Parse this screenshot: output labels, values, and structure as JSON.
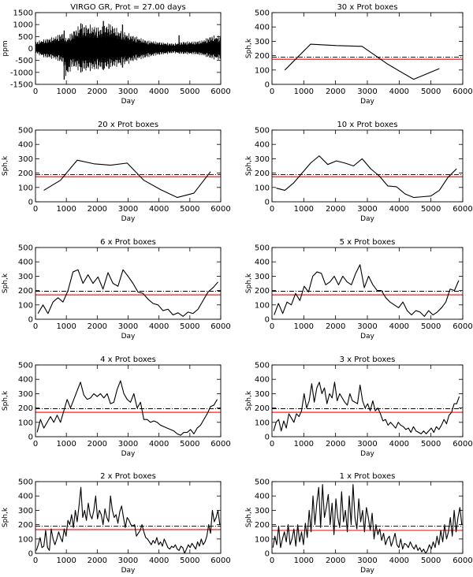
{
  "figure": {
    "colors": {
      "line": "#000000",
      "mean_line": "#ff0000",
      "dashdot_line": "#000000",
      "background": "#ffffff"
    }
  },
  "chart_data": [
    {
      "type": "line",
      "title": "VIRGO GR, Prot = 27.00 days",
      "xlabel": "Day",
      "ylabel": "ppm",
      "xlim": [
        0,
        6000
      ],
      "ylim": [
        -1500,
        1500
      ],
      "xticks": [
        0,
        1000,
        2000,
        3000,
        4000,
        5000,
        6000
      ],
      "yticks": [
        -1500,
        -1000,
        -500,
        0,
        500,
        1000,
        1500
      ],
      "envelope": {
        "note": "dense light curve; values are the visible upper/lower envelope",
        "x": [
          0,
          300,
          600,
          900,
          1000,
          1200,
          1500,
          1800,
          2100,
          2400,
          2700,
          3000,
          3300,
          3600,
          3900,
          4200,
          4500,
          4800,
          5100,
          5400,
          5700,
          6000
        ],
        "upper": [
          300,
          400,
          500,
          700,
          400,
          750,
          1050,
          1000,
          900,
          1100,
          800,
          650,
          500,
          350,
          300,
          250,
          220,
          300,
          300,
          350,
          550,
          550
        ],
        "lower": [
          -200,
          -400,
          -450,
          -650,
          -1300,
          -800,
          -1000,
          -950,
          -900,
          -850,
          -750,
          -650,
          -500,
          -400,
          -300,
          -250,
          -200,
          -250,
          -250,
          -300,
          -450,
          -500
        ]
      },
      "spikes": [
        {
          "x": 930,
          "lo": -1300,
          "hi": 750
        },
        {
          "x": 1470,
          "lo": -1000,
          "hi": 1050
        },
        {
          "x": 2200,
          "lo": -900,
          "hi": 1150
        },
        {
          "x": 2380,
          "lo": -850,
          "hi": 700
        },
        {
          "x": 2820,
          "lo": -800,
          "hi": 1000
        },
        {
          "x": 4650,
          "lo": -200,
          "hi": 550
        }
      ]
    },
    {
      "type": "line",
      "title": "30 x Prot boxes",
      "xlabel": "Day",
      "ylabel": "Sph,k",
      "xlim": [
        0,
        6000
      ],
      "ylim": [
        0,
        500
      ],
      "xticks": [
        0,
        1000,
        2000,
        3000,
        4000,
        5000,
        6000
      ],
      "yticks": [
        0,
        100,
        200,
        300,
        400,
        500
      ],
      "mean_line": 175,
      "dashdot_line": 190,
      "x": [
        405,
        1215,
        2025,
        2835,
        3645,
        4455,
        5265
      ],
      "y": [
        100,
        280,
        270,
        265,
        140,
        35,
        110
      ]
    },
    {
      "type": "line",
      "title": "20 x Prot boxes",
      "xlabel": "Day",
      "ylabel": "Sph,k",
      "xlim": [
        0,
        6000
      ],
      "ylim": [
        0,
        500
      ],
      "xticks": [
        0,
        1000,
        2000,
        3000,
        4000,
        5000,
        6000
      ],
      "yticks": [
        0,
        100,
        200,
        300,
        400,
        500
      ],
      "mean_line": 175,
      "dashdot_line": 190,
      "x": [
        270,
        810,
        1350,
        1890,
        2430,
        2970,
        3510,
        4050,
        4590,
        5130,
        5670
      ],
      "y": [
        80,
        150,
        290,
        265,
        255,
        270,
        150,
        85,
        30,
        60,
        210
      ]
    },
    {
      "type": "line",
      "title": "10 x Prot boxes",
      "xlabel": "Day",
      "ylabel": "Sph,k",
      "xlim": [
        0,
        6000
      ],
      "ylim": [
        0,
        500
      ],
      "xticks": [
        0,
        1000,
        2000,
        3000,
        4000,
        5000,
        6000
      ],
      "yticks": [
        0,
        100,
        200,
        300,
        400,
        500
      ],
      "mean_line": 175,
      "dashdot_line": 190,
      "x": [
        135,
        405,
        675,
        945,
        1215,
        1485,
        1755,
        2025,
        2295,
        2565,
        2835,
        3105,
        3375,
        3645,
        3915,
        4185,
        4455,
        4725,
        4995,
        5265,
        5535,
        5805
      ],
      "y": [
        95,
        80,
        130,
        200,
        270,
        320,
        260,
        285,
        270,
        250,
        300,
        230,
        180,
        110,
        105,
        55,
        30,
        35,
        40,
        80,
        170,
        230
      ]
    },
    {
      "type": "line",
      "title": "6 x Prot boxes",
      "xlabel": "Day",
      "ylabel": "Sph,k",
      "xlim": [
        0,
        6000
      ],
      "ylim": [
        0,
        500
      ],
      "xticks": [
        0,
        1000,
        2000,
        3000,
        4000,
        5000,
        6000
      ],
      "yticks": [
        0,
        100,
        200,
        300,
        400,
        500
      ],
      "mean_line": 170,
      "dashdot_line": 195,
      "x": [
        81,
        243,
        405,
        567,
        729,
        891,
        1053,
        1215,
        1377,
        1539,
        1701,
        1863,
        2025,
        2187,
        2349,
        2511,
        2673,
        2835,
        2997,
        3159,
        3321,
        3483,
        3645,
        3807,
        3969,
        4131,
        4293,
        4455,
        4617,
        4779,
        4941,
        5103,
        5265,
        5427,
        5589,
        5751,
        5913
      ],
      "y": [
        40,
        100,
        40,
        120,
        150,
        120,
        200,
        330,
        345,
        250,
        310,
        250,
        295,
        210,
        325,
        250,
        230,
        345,
        300,
        250,
        190,
        180,
        140,
        110,
        100,
        60,
        70,
        30,
        45,
        20,
        50,
        40,
        70,
        130,
        190,
        220,
        260
      ]
    },
    {
      "type": "line",
      "title": "5 x Prot boxes",
      "xlabel": "Day",
      "ylabel": "Sph,k",
      "xlim": [
        0,
        6000
      ],
      "ylim": [
        0,
        500
      ],
      "xticks": [
        0,
        1000,
        2000,
        3000,
        4000,
        5000,
        6000
      ],
      "yticks": [
        0,
        100,
        200,
        300,
        400,
        500
      ],
      "mean_line": 170,
      "dashdot_line": 195,
      "x": [
        68,
        203,
        338,
        473,
        608,
        743,
        878,
        1013,
        1148,
        1283,
        1418,
        1553,
        1688,
        1823,
        1958,
        2093,
        2228,
        2363,
        2498,
        2633,
        2768,
        2903,
        3038,
        3173,
        3308,
        3443,
        3578,
        3713,
        3848,
        3983,
        4118,
        4253,
        4388,
        4523,
        4658,
        4793,
        4928,
        5063,
        5198,
        5333,
        5468,
        5603,
        5738,
        5873
      ],
      "y": [
        30,
        110,
        40,
        120,
        100,
        180,
        130,
        230,
        190,
        300,
        330,
        320,
        240,
        260,
        300,
        240,
        300,
        260,
        240,
        320,
        380,
        220,
        300,
        240,
        200,
        200,
        150,
        120,
        100,
        80,
        120,
        60,
        30,
        60,
        50,
        20,
        60,
        30,
        50,
        80,
        120,
        210,
        200,
        270
      ]
    },
    {
      "type": "line",
      "title": "4 x Prot boxes",
      "xlabel": "Day",
      "ylabel": "Sph,k",
      "xlim": [
        0,
        6000
      ],
      "ylim": [
        0,
        500
      ],
      "xticks": [
        0,
        1000,
        2000,
        3000,
        4000,
        5000,
        6000
      ],
      "yticks": [
        0,
        100,
        200,
        300,
        400,
        500
      ],
      "mean_line": 170,
      "dashdot_line": 195,
      "x": [
        54,
        162,
        270,
        378,
        486,
        594,
        702,
        810,
        918,
        1026,
        1134,
        1242,
        1350,
        1458,
        1566,
        1674,
        1782,
        1890,
        1998,
        2106,
        2214,
        2322,
        2430,
        2538,
        2646,
        2754,
        2862,
        2970,
        3078,
        3186,
        3294,
        3402,
        3510,
        3618,
        3726,
        3834,
        3942,
        4050,
        4158,
        4266,
        4374,
        4482,
        4590,
        4698,
        4806,
        4914,
        5022,
        5130,
        5238,
        5346,
        5454,
        5562,
        5670,
        5778,
        5886
      ],
      "y": [
        30,
        120,
        60,
        100,
        140,
        100,
        150,
        100,
        180,
        260,
        200,
        260,
        320,
        380,
        290,
        260,
        270,
        300,
        280,
        300,
        270,
        300,
        230,
        240,
        330,
        390,
        300,
        260,
        240,
        300,
        200,
        240,
        120,
        120,
        100,
        110,
        100,
        80,
        70,
        60,
        50,
        40,
        20,
        10,
        30,
        30,
        50,
        20,
        60,
        80,
        120,
        160,
        210,
        220,
        260
      ]
    },
    {
      "type": "line",
      "title": "3 x Prot boxes",
      "xlabel": "Day",
      "ylabel": "Sph,k",
      "xlim": [
        0,
        6000
      ],
      "ylim": [
        0,
        500
      ],
      "xticks": [
        0,
        1000,
        2000,
        3000,
        4000,
        5000,
        6000
      ],
      "yticks": [
        0,
        100,
        200,
        300,
        400,
        500
      ],
      "mean_line": 170,
      "dashdot_line": 195,
      "x": [
        50,
        130,
        210,
        290,
        370,
        450,
        530,
        610,
        690,
        770,
        850,
        930,
        1010,
        1090,
        1170,
        1250,
        1330,
        1410,
        1490,
        1570,
        1650,
        1730,
        1810,
        1890,
        1970,
        2050,
        2130,
        2210,
        2290,
        2370,
        2450,
        2530,
        2610,
        2690,
        2770,
        2850,
        2930,
        3010,
        3090,
        3170,
        3250,
        3330,
        3410,
        3490,
        3570,
        3650,
        3730,
        3810,
        3890,
        3970,
        4050,
        4130,
        4210,
        4290,
        4370,
        4450,
        4530,
        4610,
        4690,
        4770,
        4850,
        4930,
        5010,
        5090,
        5170,
        5250,
        5330,
        5410,
        5490,
        5570,
        5650,
        5730,
        5810,
        5890
      ],
      "y": [
        40,
        100,
        120,
        40,
        110,
        60,
        160,
        130,
        100,
        160,
        140,
        180,
        300,
        200,
        250,
        370,
        240,
        340,
        380,
        300,
        340,
        230,
        300,
        270,
        380,
        250,
        300,
        270,
        240,
        220,
        300,
        250,
        240,
        230,
        360,
        250,
        200,
        230,
        180,
        250,
        180,
        200,
        160,
        110,
        120,
        80,
        100,
        80,
        60,
        100,
        80,
        70,
        50,
        60,
        30,
        70,
        40,
        30,
        20,
        40,
        20,
        40,
        60,
        30,
        70,
        50,
        80,
        120,
        90,
        150,
        170,
        230,
        230,
        280
      ]
    },
    {
      "type": "line",
      "title": "2 x Prot boxes",
      "xlabel": "Day",
      "ylabel": "Sph,k",
      "xlim": [
        0,
        6000
      ],
      "ylim": [
        0,
        500
      ],
      "xticks": [
        0,
        1000,
        2000,
        3000,
        4000,
        5000,
        6000
      ],
      "yticks": [
        0,
        100,
        200,
        300,
        400,
        500
      ],
      "mean_line": 165,
      "dashdot_line": 190,
      "x": [
        30,
        90,
        150,
        210,
        270,
        330,
        390,
        450,
        510,
        570,
        630,
        690,
        750,
        810,
        870,
        930,
        990,
        1050,
        1110,
        1170,
        1230,
        1290,
        1350,
        1410,
        1470,
        1530,
        1590,
        1650,
        1710,
        1770,
        1830,
        1890,
        1950,
        2010,
        2070,
        2130,
        2190,
        2250,
        2310,
        2370,
        2430,
        2490,
        2550,
        2610,
        2670,
        2730,
        2790,
        2850,
        2910,
        2970,
        3030,
        3090,
        3150,
        3210,
        3270,
        3330,
        3390,
        3450,
        3510,
        3570,
        3630,
        3690,
        3750,
        3810,
        3870,
        3930,
        3990,
        4050,
        4110,
        4170,
        4230,
        4290,
        4350,
        4410,
        4470,
        4530,
        4590,
        4650,
        4710,
        4770,
        4830,
        4890,
        4950,
        5010,
        5070,
        5130,
        5190,
        5250,
        5310,
        5370,
        5430,
        5490,
        5550,
        5610,
        5670,
        5730,
        5790,
        5850,
        5910,
        5970
      ],
      "y": [
        20,
        60,
        110,
        40,
        50,
        160,
        40,
        20,
        170,
        100,
        60,
        100,
        150,
        110,
        80,
        170,
        120,
        230,
        200,
        270,
        180,
        300,
        220,
        330,
        460,
        250,
        300,
        230,
        350,
        270,
        240,
        300,
        400,
        240,
        300,
        270,
        200,
        310,
        250,
        220,
        400,
        300,
        250,
        270,
        210,
        290,
        330,
        250,
        180,
        250,
        230,
        200,
        190,
        200,
        120,
        140,
        160,
        200,
        150,
        110,
        100,
        80,
        60,
        90,
        70,
        110,
        60,
        80,
        50,
        100,
        70,
        40,
        30,
        50,
        40,
        60,
        30,
        20,
        50,
        40,
        0,
        30,
        60,
        40,
        70,
        50,
        30,
        80,
        50,
        100,
        60,
        80,
        120,
        200,
        140,
        300,
        220,
        250,
        300,
        200
      ]
    },
    {
      "type": "line",
      "title": "1 x Prot boxes",
      "xlabel": "Day",
      "ylabel": "Sph,k",
      "xlim": [
        0,
        6000
      ],
      "ylim": [
        0,
        500
      ],
      "xticks": [
        0,
        1000,
        2000,
        3000,
        4000,
        5000,
        6000
      ],
      "yticks": [
        0,
        100,
        200,
        300,
        400,
        500
      ],
      "mean_line": 160,
      "dashdot_line": 190,
      "x": [
        30,
        90,
        150,
        210,
        270,
        330,
        390,
        450,
        510,
        570,
        630,
        690,
        750,
        810,
        870,
        930,
        990,
        1050,
        1110,
        1170,
        1230,
        1290,
        1350,
        1410,
        1470,
        1530,
        1590,
        1650,
        1710,
        1770,
        1830,
        1890,
        1950,
        2010,
        2070,
        2130,
        2190,
        2250,
        2310,
        2370,
        2430,
        2490,
        2550,
        2610,
        2670,
        2730,
        2790,
        2850,
        2910,
        2970,
        3030,
        3090,
        3150,
        3210,
        3270,
        3330,
        3390,
        3450,
        3510,
        3570,
        3630,
        3690,
        3750,
        3810,
        3870,
        3930,
        3990,
        4050,
        4110,
        4170,
        4230,
        4290,
        4350,
        4410,
        4470,
        4530,
        4590,
        4650,
        4710,
        4770,
        4830,
        4890,
        4950,
        5010,
        5070,
        5130,
        5190,
        5250,
        5310,
        5370,
        5430,
        5490,
        5550,
        5610,
        5670,
        5730,
        5790,
        5850,
        5910,
        5970
      ],
      "y": [
        40,
        120,
        60,
        190,
        40,
        100,
        150,
        80,
        200,
        60,
        100,
        170,
        50,
        200,
        80,
        150,
        60,
        210,
        110,
        300,
        150,
        400,
        200,
        350,
        460,
        180,
        480,
        250,
        320,
        410,
        200,
        350,
        130,
        380,
        250,
        180,
        430,
        220,
        300,
        150,
        400,
        200,
        480,
        250,
        170,
        380,
        220,
        300,
        150,
        320,
        250,
        160,
        280,
        100,
        200,
        130,
        170,
        90,
        140,
        60,
        100,
        120,
        50,
        90,
        140,
        60,
        40,
        100,
        30,
        70,
        60,
        40,
        80,
        50,
        30,
        60,
        20,
        40,
        10,
        30,
        0,
        20,
        60,
        30,
        80,
        40,
        120,
        60,
        160,
        80,
        200,
        100,
        150,
        250,
        120,
        300,
        150,
        250,
        320,
        200
      ]
    }
  ]
}
